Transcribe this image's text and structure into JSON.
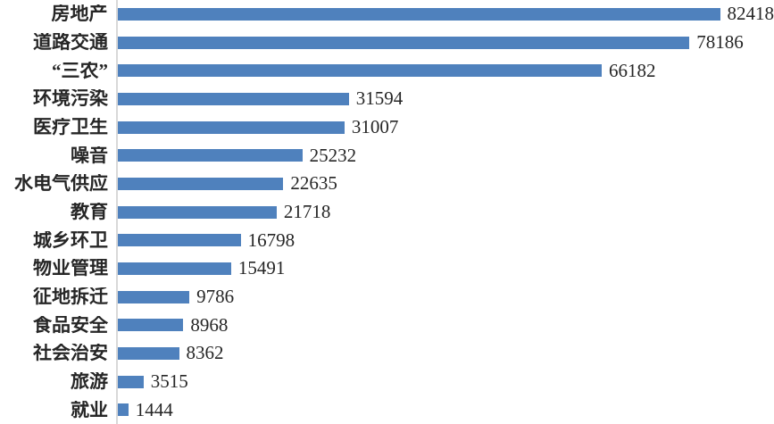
{
  "chart_data": {
    "type": "bar",
    "orientation": "horizontal",
    "title": "",
    "xlabel": "",
    "ylabel": "",
    "grid": false,
    "legend": false,
    "sorted": "descending",
    "categories": [
      "房地产",
      "道路交通",
      "“三农”",
      "环境污染",
      "医疗卫生",
      "噪音",
      "水电气供应",
      "教育",
      "城乡环卫",
      "物业管理",
      "征地拆迁",
      "食品安全",
      "社会治安",
      "旅游",
      "就业"
    ],
    "values": [
      82418,
      78186,
      66182,
      31594,
      31007,
      25232,
      22635,
      21718,
      16798,
      15491,
      9786,
      8968,
      8362,
      3515,
      1444
    ],
    "value_labels": [
      "82418",
      "78186",
      "66182",
      "31594",
      "31007",
      "25232",
      "22635",
      "21718",
      "16798",
      "15491",
      "9786",
      "8968",
      "8362",
      "3515",
      "1444"
    ],
    "xlim": [
      0,
      90000
    ],
    "bar_color": "#4F81BD",
    "axis_line_color": "#d9d9d9",
    "text_color": "#262626"
  }
}
